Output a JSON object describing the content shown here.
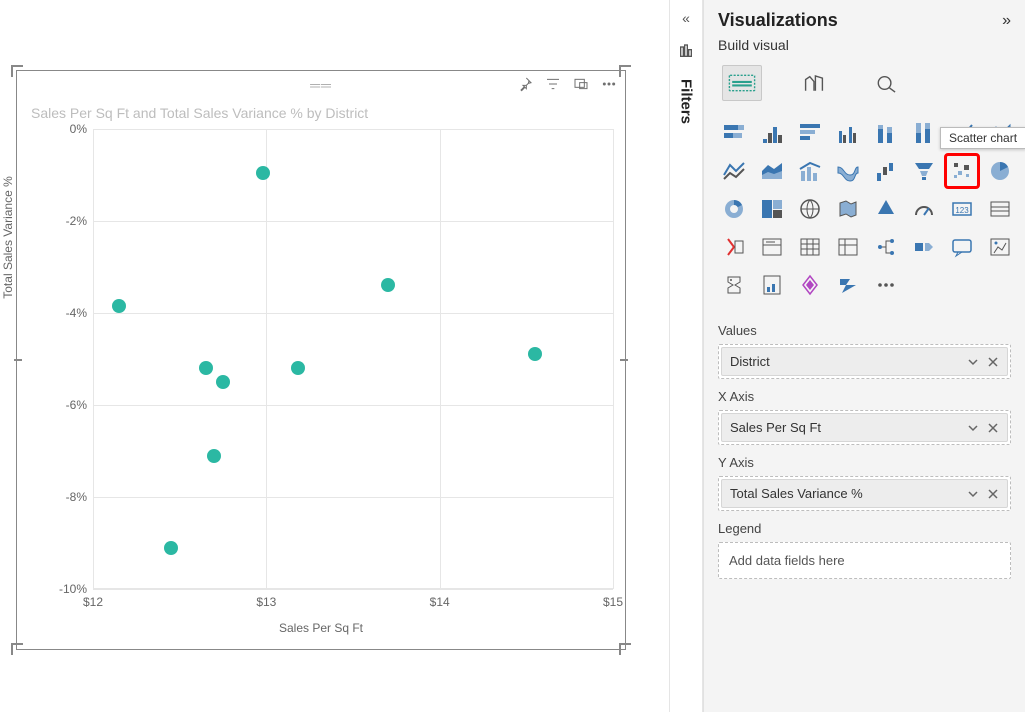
{
  "canvas": {
    "title": "Sales Per Sq Ft and Total Sales Variance % by District",
    "xlabel": "Sales Per Sq Ft",
    "ylabel": "Total Sales Variance %",
    "xlim": [
      12,
      15
    ],
    "ylim": [
      -10,
      0
    ],
    "xticks": [
      {
        "v": 12,
        "label": "$12"
      },
      {
        "v": 13,
        "label": "$13"
      },
      {
        "v": 14,
        "label": "$14"
      },
      {
        "v": 15,
        "label": "$15"
      }
    ],
    "yticks": [
      {
        "v": 0,
        "label": "0%"
      },
      {
        "v": -2,
        "label": "-2%"
      },
      {
        "v": -4,
        "label": "-4%"
      },
      {
        "v": -6,
        "label": "-6%"
      },
      {
        "v": -8,
        "label": "-8%"
      },
      {
        "v": -10,
        "label": "-10%"
      }
    ],
    "marker_color": "#2bb8a3",
    "marker_size": 14,
    "grid_color": "#e6e6e6",
    "points": [
      {
        "x": 12.15,
        "y": -3.85
      },
      {
        "x": 12.45,
        "y": -9.1
      },
      {
        "x": 12.65,
        "y": -5.2
      },
      {
        "x": 12.7,
        "y": -7.1
      },
      {
        "x": 12.75,
        "y": -5.5
      },
      {
        "x": 12.98,
        "y": -0.95
      },
      {
        "x": 13.18,
        "y": -5.2
      },
      {
        "x": 13.7,
        "y": -3.4
      },
      {
        "x": 14.55,
        "y": -4.9
      }
    ]
  },
  "filters_rail": {
    "label": "Filters"
  },
  "viz": {
    "title": "Visualizations",
    "subtitle": "Build visual",
    "tooltip": "Scatter chart",
    "selected_index": 14,
    "gallery": [
      "stacked-bar",
      "clustered-bar",
      "stacked-bar-h",
      "clustered-column",
      "stacked-column",
      "stacked-column-100",
      "line",
      "area",
      "line-area",
      "stacked-area",
      "line-stacked",
      "ribbon",
      "waterfall",
      "funnel",
      "scatter",
      "pie",
      "donut",
      "treemap",
      "map",
      "filled-map",
      "azure-map",
      "gauge",
      "card",
      "kpi",
      "multi-card",
      "slicer",
      "table",
      "matrix",
      "decomp-tree",
      "key-influencers",
      "qna",
      "r-visual",
      "python",
      "paginated",
      "power-apps",
      "power-automate",
      "more"
    ],
    "fields": {
      "values_label": "Values",
      "values_item": "District",
      "xaxis_label": "X Axis",
      "xaxis_item": "Sales Per Sq Ft",
      "yaxis_label": "Y Axis",
      "yaxis_item": "Total Sales Variance %",
      "legend_label": "Legend",
      "legend_placeholder": "Add data fields here"
    }
  }
}
